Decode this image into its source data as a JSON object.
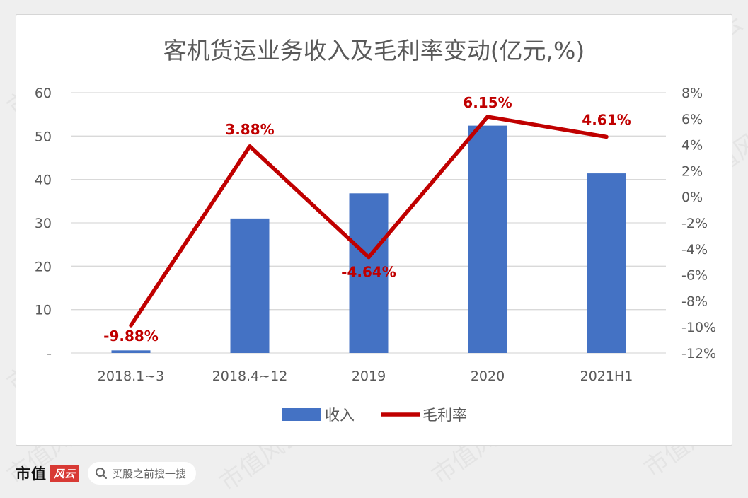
{
  "chart_data": {
    "type": "bar+line",
    "title": "客机货运业务收入及毛利率变动(亿元,%)",
    "categories": [
      "2018.1~3",
      "2018.4~12",
      "2019",
      "2020",
      "2021H1"
    ],
    "series": [
      {
        "name": "收入",
        "type": "bar",
        "axis": "left",
        "color": "#4472c4",
        "values": [
          0.6,
          31.0,
          36.8,
          52.4,
          41.4
        ]
      },
      {
        "name": "毛利率",
        "type": "line",
        "axis": "right",
        "color": "#c00000",
        "values": [
          -9.88,
          3.88,
          -4.64,
          6.15,
          4.61
        ],
        "data_labels": [
          "-9.88%",
          "3.88%",
          "-4.64%",
          "6.15%",
          "4.61%"
        ]
      }
    ],
    "y_left": {
      "ylim": [
        0,
        60
      ],
      "ticks": [
        "-",
        "10",
        "20",
        "30",
        "40",
        "50",
        "60"
      ]
    },
    "y_right": {
      "ylim": [
        -12,
        8
      ],
      "ticks": [
        "-12%",
        "-10%",
        "-8%",
        "-6%",
        "-4%",
        "-2%",
        "0%",
        "2%",
        "4%",
        "6%",
        "8%"
      ]
    },
    "grid": true,
    "legend": "bottom"
  },
  "watermark": "市值风云",
  "footer": {
    "brand": "市值",
    "brand_badge": "风云",
    "search_placeholder": "买股之前搜一搜"
  }
}
